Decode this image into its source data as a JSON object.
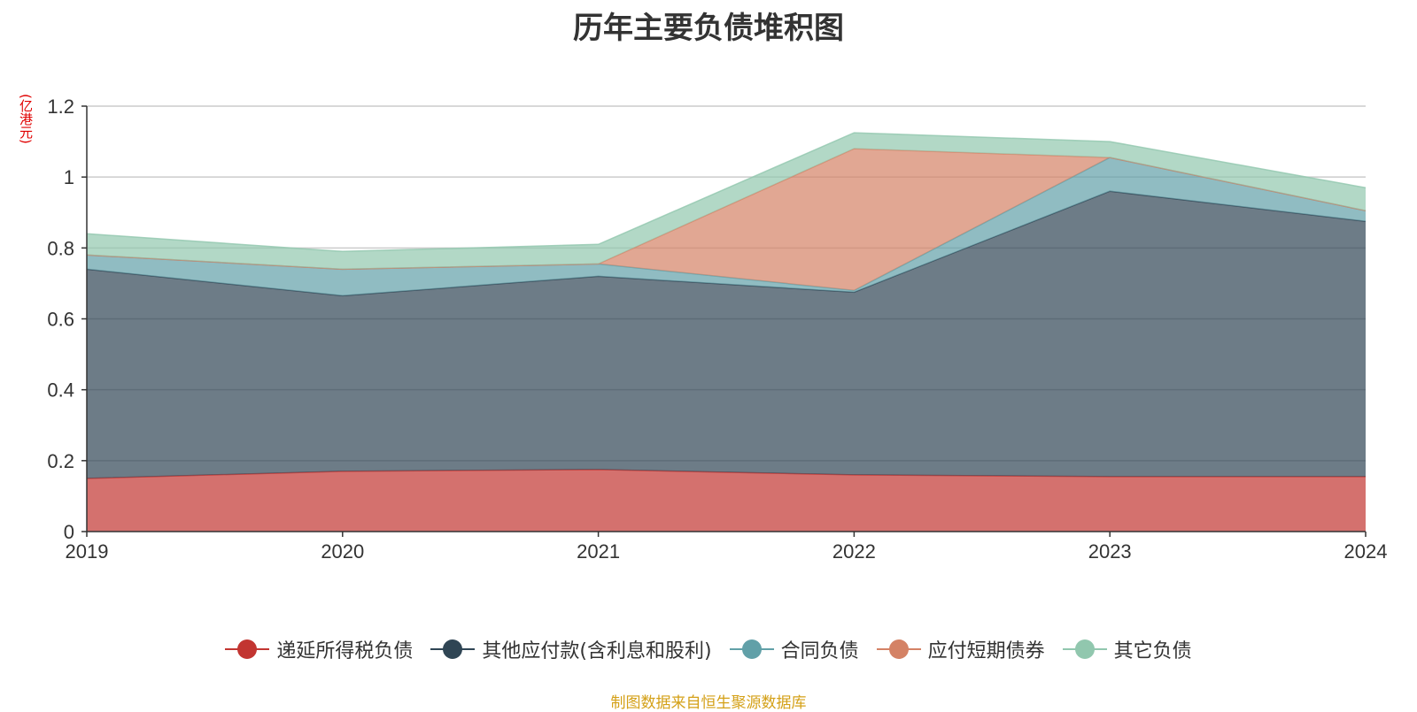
{
  "title": "历年主要负债堆积图",
  "unit": "(亿港元)",
  "source": "制图数据来自恒生聚源数据库",
  "chart_data": {
    "type": "area",
    "stacked": true,
    "title": "历年主要负债堆积图",
    "ylabel": "(亿港元)",
    "xlabel": "",
    "categories": [
      "2019",
      "2020",
      "2021",
      "2022",
      "2023",
      "2024"
    ],
    "ylim": [
      0,
      1.2
    ],
    "yticks": [
      "0",
      "0.2",
      "0.4",
      "0.6",
      "0.8",
      "1",
      "1.2"
    ],
    "grid": true,
    "legend_position": "bottom",
    "series": [
      {
        "name": "递延所得税负债",
        "color": "#c23531",
        "values": [
          0.15,
          0.17,
          0.175,
          0.16,
          0.155,
          0.155
        ]
      },
      {
        "name": "其他应付款(含利息和股利)",
        "color": "#2f4554",
        "values": [
          0.59,
          0.495,
          0.545,
          0.515,
          0.805,
          0.72
        ]
      },
      {
        "name": "合同负债",
        "color": "#61a0a8",
        "values": [
          0.04,
          0.075,
          0.035,
          0.005,
          0.095,
          0.03
        ]
      },
      {
        "name": "应付短期债券",
        "color": "#d48265",
        "values": [
          0,
          0,
          0,
          0.4,
          0,
          0
        ]
      },
      {
        "name": "其它负债",
        "color": "#91c7ae",
        "values": [
          0.06,
          0.05,
          0.055,
          0.045,
          0.045,
          0.065
        ]
      }
    ]
  }
}
